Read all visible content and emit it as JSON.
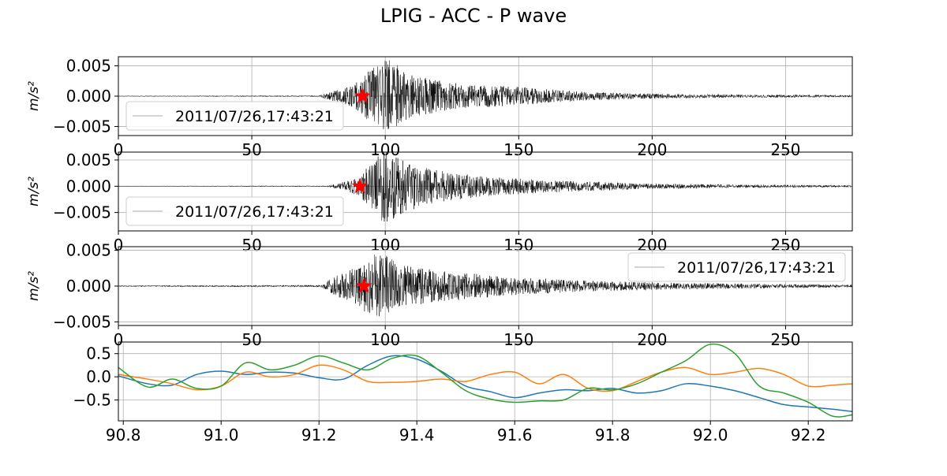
{
  "figure": {
    "title": "LPIG - ACC - P wave"
  },
  "chart_data": [
    {
      "type": "line",
      "panel": "trace-1",
      "ylabel": "m/s²",
      "xlim": [
        0,
        275
      ],
      "ylim": [
        -0.0065,
        0.0065
      ],
      "xticks": [
        0,
        50,
        100,
        150,
        200,
        250
      ],
      "yticks": [
        -0.005,
        0.0,
        0.005
      ],
      "ytick_labels": [
        "−0.005",
        "0.000",
        "0.005"
      ],
      "grid": true,
      "legend": {
        "label": "2011/07/26,17:43:21",
        "placement": "lower-left"
      },
      "pick_marker": {
        "x": 91.5,
        "y": 0.0,
        "color": "#ff0000",
        "shape": "star"
      },
      "series": [
        {
          "color": "#000000",
          "envelope": [
            {
              "x": 0,
              "amp": 5e-05
            },
            {
              "x": 75,
              "amp": 0.0001
            },
            {
              "x": 80,
              "amp": 0.0008
            },
            {
              "x": 88,
              "amp": 0.0018
            },
            {
              "x": 92,
              "amp": 0.0035
            },
            {
              "x": 97,
              "amp": 0.0055
            },
            {
              "x": 101,
              "amp": 0.0062
            },
            {
              "x": 110,
              "amp": 0.0035
            },
            {
              "x": 125,
              "amp": 0.0022
            },
            {
              "x": 150,
              "amp": 0.0015
            },
            {
              "x": 175,
              "amp": 0.0007
            },
            {
              "x": 200,
              "amp": 0.0004
            },
            {
              "x": 240,
              "amp": 0.00025
            },
            {
              "x": 275,
              "amp": 0.0002
            }
          ]
        }
      ]
    },
    {
      "type": "line",
      "panel": "trace-2",
      "ylabel": "m/s²",
      "xlim": [
        0,
        275
      ],
      "ylim": [
        -0.0085,
        0.0065
      ],
      "xticks": [
        0,
        50,
        100,
        150,
        200,
        250
      ],
      "yticks": [
        -0.005,
        0.0,
        0.005
      ],
      "ytick_labels": [
        "−0.005",
        "0.000",
        "0.005"
      ],
      "grid": true,
      "legend": {
        "label": "2011/07/26,17:43:21",
        "placement": "lower-left"
      },
      "pick_marker": {
        "x": 90.5,
        "y": 0.0,
        "color": "#ff0000",
        "shape": "star"
      },
      "series": [
        {
          "color": "#000000",
          "envelope": [
            {
              "x": 0,
              "amp": 5e-05
            },
            {
              "x": 78,
              "amp": 0.0001
            },
            {
              "x": 83,
              "amp": 0.0006
            },
            {
              "x": 90,
              "amp": 0.0018
            },
            {
              "x": 95,
              "amp": 0.0045
            },
            {
              "x": 100,
              "amp": 0.0075
            },
            {
              "x": 105,
              "amp": 0.0055
            },
            {
              "x": 115,
              "amp": 0.0035
            },
            {
              "x": 135,
              "amp": 0.002
            },
            {
              "x": 160,
              "amp": 0.0012
            },
            {
              "x": 200,
              "amp": 0.0005
            },
            {
              "x": 240,
              "amp": 0.0003
            },
            {
              "x": 275,
              "amp": 0.0002
            }
          ]
        }
      ]
    },
    {
      "type": "line",
      "panel": "trace-3",
      "ylabel": "m/s²",
      "xlim": [
        0,
        275
      ],
      "ylim": [
        -0.0055,
        0.0055
      ],
      "xticks": [
        0,
        50,
        100,
        150,
        200,
        250
      ],
      "yticks": [
        -0.005,
        0.0,
        0.005
      ],
      "ytick_labels": [
        "−0.005",
        "0.000",
        "0.005"
      ],
      "grid": true,
      "legend": {
        "label": "2011/07/26,17:43:21",
        "placement": "upper-right"
      },
      "pick_marker": {
        "x": 92,
        "y": 0.0,
        "color": "#ff0000",
        "shape": "star"
      },
      "series": [
        {
          "color": "#000000",
          "envelope": [
            {
              "x": 0,
              "amp": 8e-05
            },
            {
              "x": 76,
              "amp": 0.00015
            },
            {
              "x": 80,
              "amp": 0.0012
            },
            {
              "x": 86,
              "amp": 0.002
            },
            {
              "x": 92,
              "amp": 0.0035
            },
            {
              "x": 98,
              "amp": 0.005
            },
            {
              "x": 105,
              "amp": 0.003
            },
            {
              "x": 120,
              "amp": 0.0022
            },
            {
              "x": 150,
              "amp": 0.0012
            },
            {
              "x": 180,
              "amp": 0.0007
            },
            {
              "x": 220,
              "amp": 0.0004
            },
            {
              "x": 275,
              "amp": 0.0002
            }
          ]
        }
      ]
    },
    {
      "type": "line",
      "panel": "normalized-zoom",
      "xlim": [
        90.79,
        92.29
      ],
      "ylim": [
        -0.95,
        0.75
      ],
      "xticks": [
        90.8,
        91.0,
        91.2,
        91.4,
        91.6,
        91.8,
        92.0,
        92.2
      ],
      "xtick_labels": [
        "90.8",
        "91.0",
        "91.2",
        "91.4",
        "91.6",
        "91.8",
        "92.0",
        "92.2"
      ],
      "yticks": [
        -0.5,
        0.0,
        0.5
      ],
      "ytick_labels": [
        "−0.5",
        "0.0",
        "0.5"
      ],
      "grid": true,
      "series": [
        {
          "color": "#1f77b4",
          "x": [
            90.79,
            90.85,
            90.9,
            90.95,
            91.0,
            91.05,
            91.1,
            91.15,
            91.2,
            91.25,
            91.3,
            91.35,
            91.4,
            91.45,
            91.5,
            91.55,
            91.6,
            91.65,
            91.7,
            91.75,
            91.8,
            91.85,
            91.9,
            91.95,
            92.0,
            92.05,
            92.1,
            92.15,
            92.2,
            92.25,
            92.29
          ],
          "y": [
            0.02,
            -0.15,
            -0.18,
            0.05,
            0.12,
            0.05,
            0.1,
            0.08,
            -0.02,
            -0.05,
            0.25,
            0.45,
            0.38,
            0.12,
            -0.2,
            -0.32,
            -0.45,
            -0.35,
            -0.28,
            -0.3,
            -0.25,
            -0.35,
            -0.3,
            -0.15,
            -0.2,
            -0.3,
            -0.45,
            -0.6,
            -0.65,
            -0.7,
            -0.75
          ]
        },
        {
          "color": "#ff7f0e",
          "x": [
            90.79,
            90.85,
            90.9,
            90.95,
            91.0,
            91.05,
            91.1,
            91.15,
            91.2,
            91.25,
            91.3,
            91.35,
            91.4,
            91.45,
            91.5,
            91.55,
            91.6,
            91.65,
            91.7,
            91.75,
            91.8,
            91.85,
            91.9,
            91.95,
            92.0,
            92.05,
            92.1,
            92.15,
            92.2,
            92.25,
            92.29
          ],
          "y": [
            0.05,
            -0.05,
            -0.15,
            -0.28,
            -0.2,
            0.1,
            0.0,
            0.05,
            0.25,
            0.15,
            -0.1,
            -0.12,
            -0.1,
            -0.05,
            -0.1,
            0.05,
            0.1,
            -0.15,
            0.05,
            -0.25,
            -0.3,
            -0.1,
            0.1,
            0.2,
            0.05,
            0.1,
            0.18,
            0.05,
            -0.2,
            -0.18,
            -0.15
          ]
        },
        {
          "color": "#2ca02c",
          "x": [
            90.79,
            90.85,
            90.9,
            90.95,
            91.0,
            91.05,
            91.1,
            91.15,
            91.2,
            91.25,
            91.3,
            91.35,
            91.4,
            91.45,
            91.5,
            91.55,
            91.6,
            91.65,
            91.7,
            91.75,
            91.8,
            91.85,
            91.9,
            91.95,
            92.0,
            92.05,
            92.1,
            92.15,
            92.2,
            92.25,
            92.29
          ],
          "y": [
            0.2,
            -0.22,
            -0.05,
            -0.25,
            -0.2,
            0.3,
            0.15,
            0.25,
            0.45,
            0.3,
            0.15,
            0.4,
            0.45,
            0.1,
            -0.3,
            -0.48,
            -0.55,
            -0.52,
            -0.5,
            -0.25,
            -0.28,
            -0.15,
            0.1,
            0.35,
            0.7,
            0.5,
            -0.2,
            -0.35,
            -0.55,
            -0.85,
            -0.82
          ]
        }
      ]
    }
  ]
}
